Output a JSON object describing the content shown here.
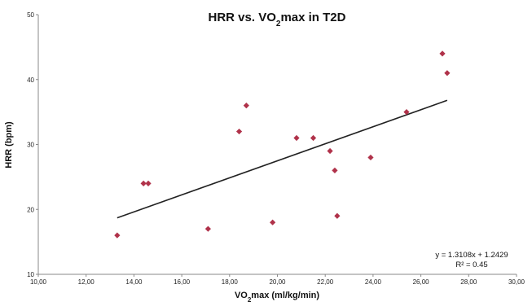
{
  "chart_data": {
    "type": "scatter",
    "title": "HRR vs. VO2max in T2D",
    "title_parts": {
      "before": "HRR vs. VO",
      "sub": "2",
      "after": "max in T2D"
    },
    "xlabel": "VO2max (ml/kg/min)",
    "xlabel_parts": {
      "before": "VO",
      "sub": "2",
      "after": "max (ml/kg/min)"
    },
    "ylabel": "HRR (bpm)",
    "xlim": [
      10,
      30
    ],
    "ylim": [
      10,
      50
    ],
    "xticks": [
      "10,00",
      "12,00",
      "14,00",
      "16,00",
      "18,00",
      "20,00",
      "22,00",
      "24,00",
      "26,00",
      "28,00",
      "30,00"
    ],
    "yticks": [
      "10",
      "20",
      "30",
      "40",
      "50"
    ],
    "grid": false,
    "legend": "none",
    "marker_color": "#b0324a",
    "line_color": "#222222",
    "points": [
      {
        "x": 13.3,
        "y": 16
      },
      {
        "x": 14.4,
        "y": 24
      },
      {
        "x": 14.6,
        "y": 24
      },
      {
        "x": 17.1,
        "y": 17
      },
      {
        "x": 18.4,
        "y": 32
      },
      {
        "x": 18.7,
        "y": 36
      },
      {
        "x": 19.8,
        "y": 18
      },
      {
        "x": 20.8,
        "y": 31
      },
      {
        "x": 21.5,
        "y": 31
      },
      {
        "x": 22.2,
        "y": 29
      },
      {
        "x": 22.4,
        "y": 26
      },
      {
        "x": 22.5,
        "y": 19
      },
      {
        "x": 23.9,
        "y": 28
      },
      {
        "x": 25.4,
        "y": 35
      },
      {
        "x": 26.9,
        "y": 44
      },
      {
        "x": 27.1,
        "y": 41
      }
    ],
    "trendline": {
      "x_start": 13.3,
      "y_start": 18.7,
      "x_end": 27.1,
      "y_end": 36.8
    },
    "equation": "y = 1.3108x + 1.2429",
    "r_squared": "R² = 0.45"
  }
}
